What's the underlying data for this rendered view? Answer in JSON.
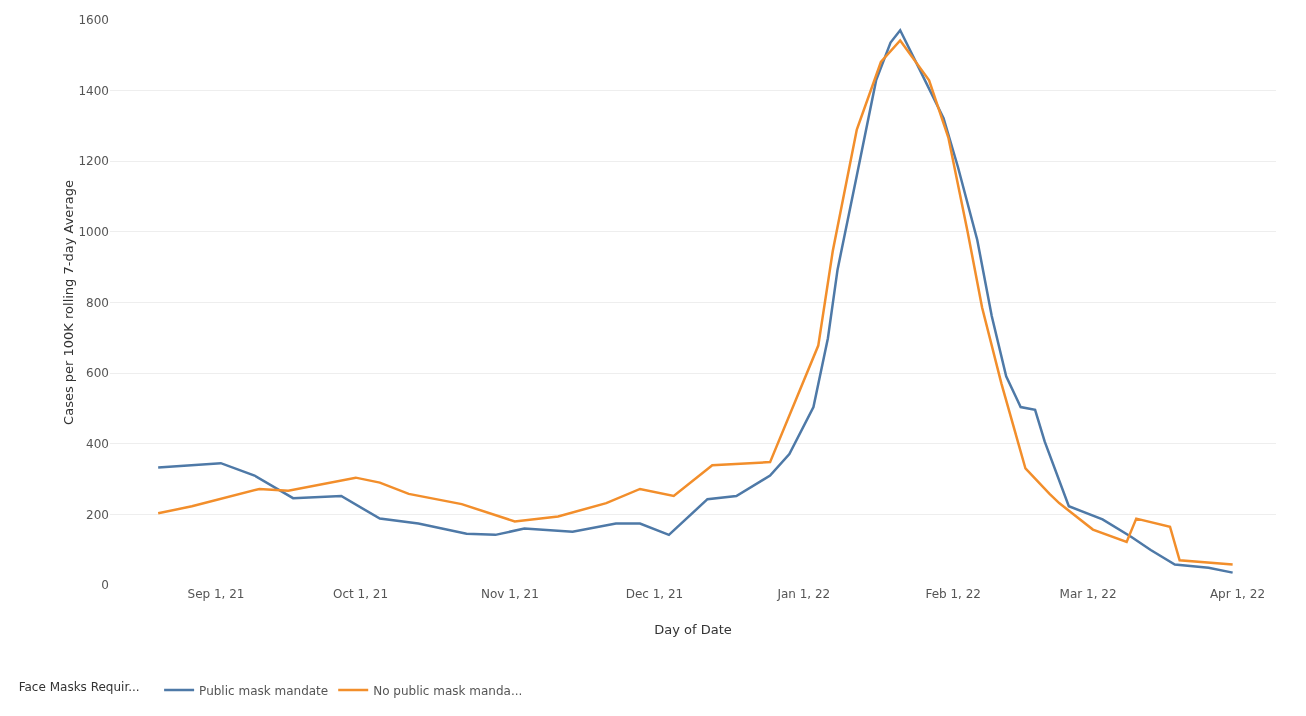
{
  "chart_data": {
    "type": "line",
    "xlabel": "Day of Date",
    "ylabel": "Cases per 100K rolling 7-day Average",
    "legend_title": "Face Masks Requir...",
    "legend": "bottom",
    "grid": "y",
    "line_style": "solid",
    "marker": "none",
    "xlim": [
      "2021-08-10",
      "2022-04-09"
    ],
    "xticks": [
      {
        "value": "2021-09-01",
        "label": "Sep 1, 21"
      },
      {
        "value": "2021-10-01",
        "label": "Oct 1, 21"
      },
      {
        "value": "2021-11-01",
        "label": "Nov 1, 21"
      },
      {
        "value": "2021-12-01",
        "label": "Dec 1, 21"
      },
      {
        "value": "2022-01-01",
        "label": "Jan 1, 22"
      },
      {
        "value": "2022-02-01",
        "label": "Feb 1, 22"
      },
      {
        "value": "2022-03-01",
        "label": "Mar 1, 22"
      },
      {
        "value": "2022-04-01",
        "label": "Apr 1, 22"
      }
    ],
    "ylim": [
      0,
      1600
    ],
    "yticks": [
      0,
      200,
      400,
      600,
      800,
      1000,
      1200,
      1400,
      1600
    ],
    "series": [
      {
        "name": "Public mask mandate",
        "color": "#4e79a7",
        "x": [
          "2021-08-20",
          "2021-09-02",
          "2021-09-09",
          "2021-09-17",
          "2021-09-27",
          "2021-10-05",
          "2021-10-13",
          "2021-10-23",
          "2021-10-29",
          "2021-11-04",
          "2021-11-14",
          "2021-11-23",
          "2021-11-28",
          "2021-12-04",
          "2021-12-12",
          "2021-12-18",
          "2021-12-25",
          "2021-12-29",
          "2022-01-03",
          "2022-01-06",
          "2022-01-08",
          "2022-01-12",
          "2022-01-16",
          "2022-01-19",
          "2022-01-21",
          "2022-01-25",
          "2022-01-30",
          "2022-02-02",
          "2022-02-06",
          "2022-02-09",
          "2022-02-12",
          "2022-02-15",
          "2022-02-18",
          "2022-02-20",
          "2022-02-25",
          "2022-03-04",
          "2022-03-10",
          "2022-03-14",
          "2022-03-19",
          "2022-03-26",
          "2022-03-31"
        ],
        "values": [
          333,
          345,
          310,
          246,
          252,
          188,
          174,
          145,
          142,
          160,
          151,
          174,
          174,
          142,
          243,
          252,
          310,
          371,
          504,
          699,
          893,
          1160,
          1429,
          1536,
          1571,
          1461,
          1322,
          1183,
          977,
          762,
          591,
          504,
          496,
          406,
          223,
          186,
          136,
          99,
          58,
          49,
          35
        ]
      },
      {
        "name": "No public mask manda...",
        "color": "#f28e2b",
        "x": [
          "2021-08-20",
          "2021-08-27",
          "2021-09-10",
          "2021-09-16",
          "2021-09-30",
          "2021-10-05",
          "2021-10-11",
          "2021-10-22",
          "2021-11-02",
          "2021-11-11",
          "2021-11-21",
          "2021-11-28",
          "2021-12-05",
          "2021-12-13",
          "2021-12-25",
          "2022-01-04",
          "2022-01-07",
          "2022-01-12",
          "2022-01-17",
          "2022-01-21",
          "2022-01-27",
          "2022-01-31",
          "2022-02-04",
          "2022-02-07",
          "2022-02-11",
          "2022-02-16",
          "2022-02-21",
          "2022-02-23",
          "2022-03-02",
          "2022-03-09",
          "2022-03-11",
          "2022-03-18",
          "2022-03-20",
          "2022-03-31"
        ],
        "values": [
          203,
          223,
          272,
          267,
          304,
          290,
          258,
          229,
          180,
          194,
          232,
          272,
          252,
          339,
          348,
          678,
          945,
          1290,
          1481,
          1542,
          1429,
          1267,
          1000,
          786,
          571,
          330,
          258,
          232,
          157,
          122,
          188,
          165,
          70,
          58
        ]
      }
    ]
  }
}
